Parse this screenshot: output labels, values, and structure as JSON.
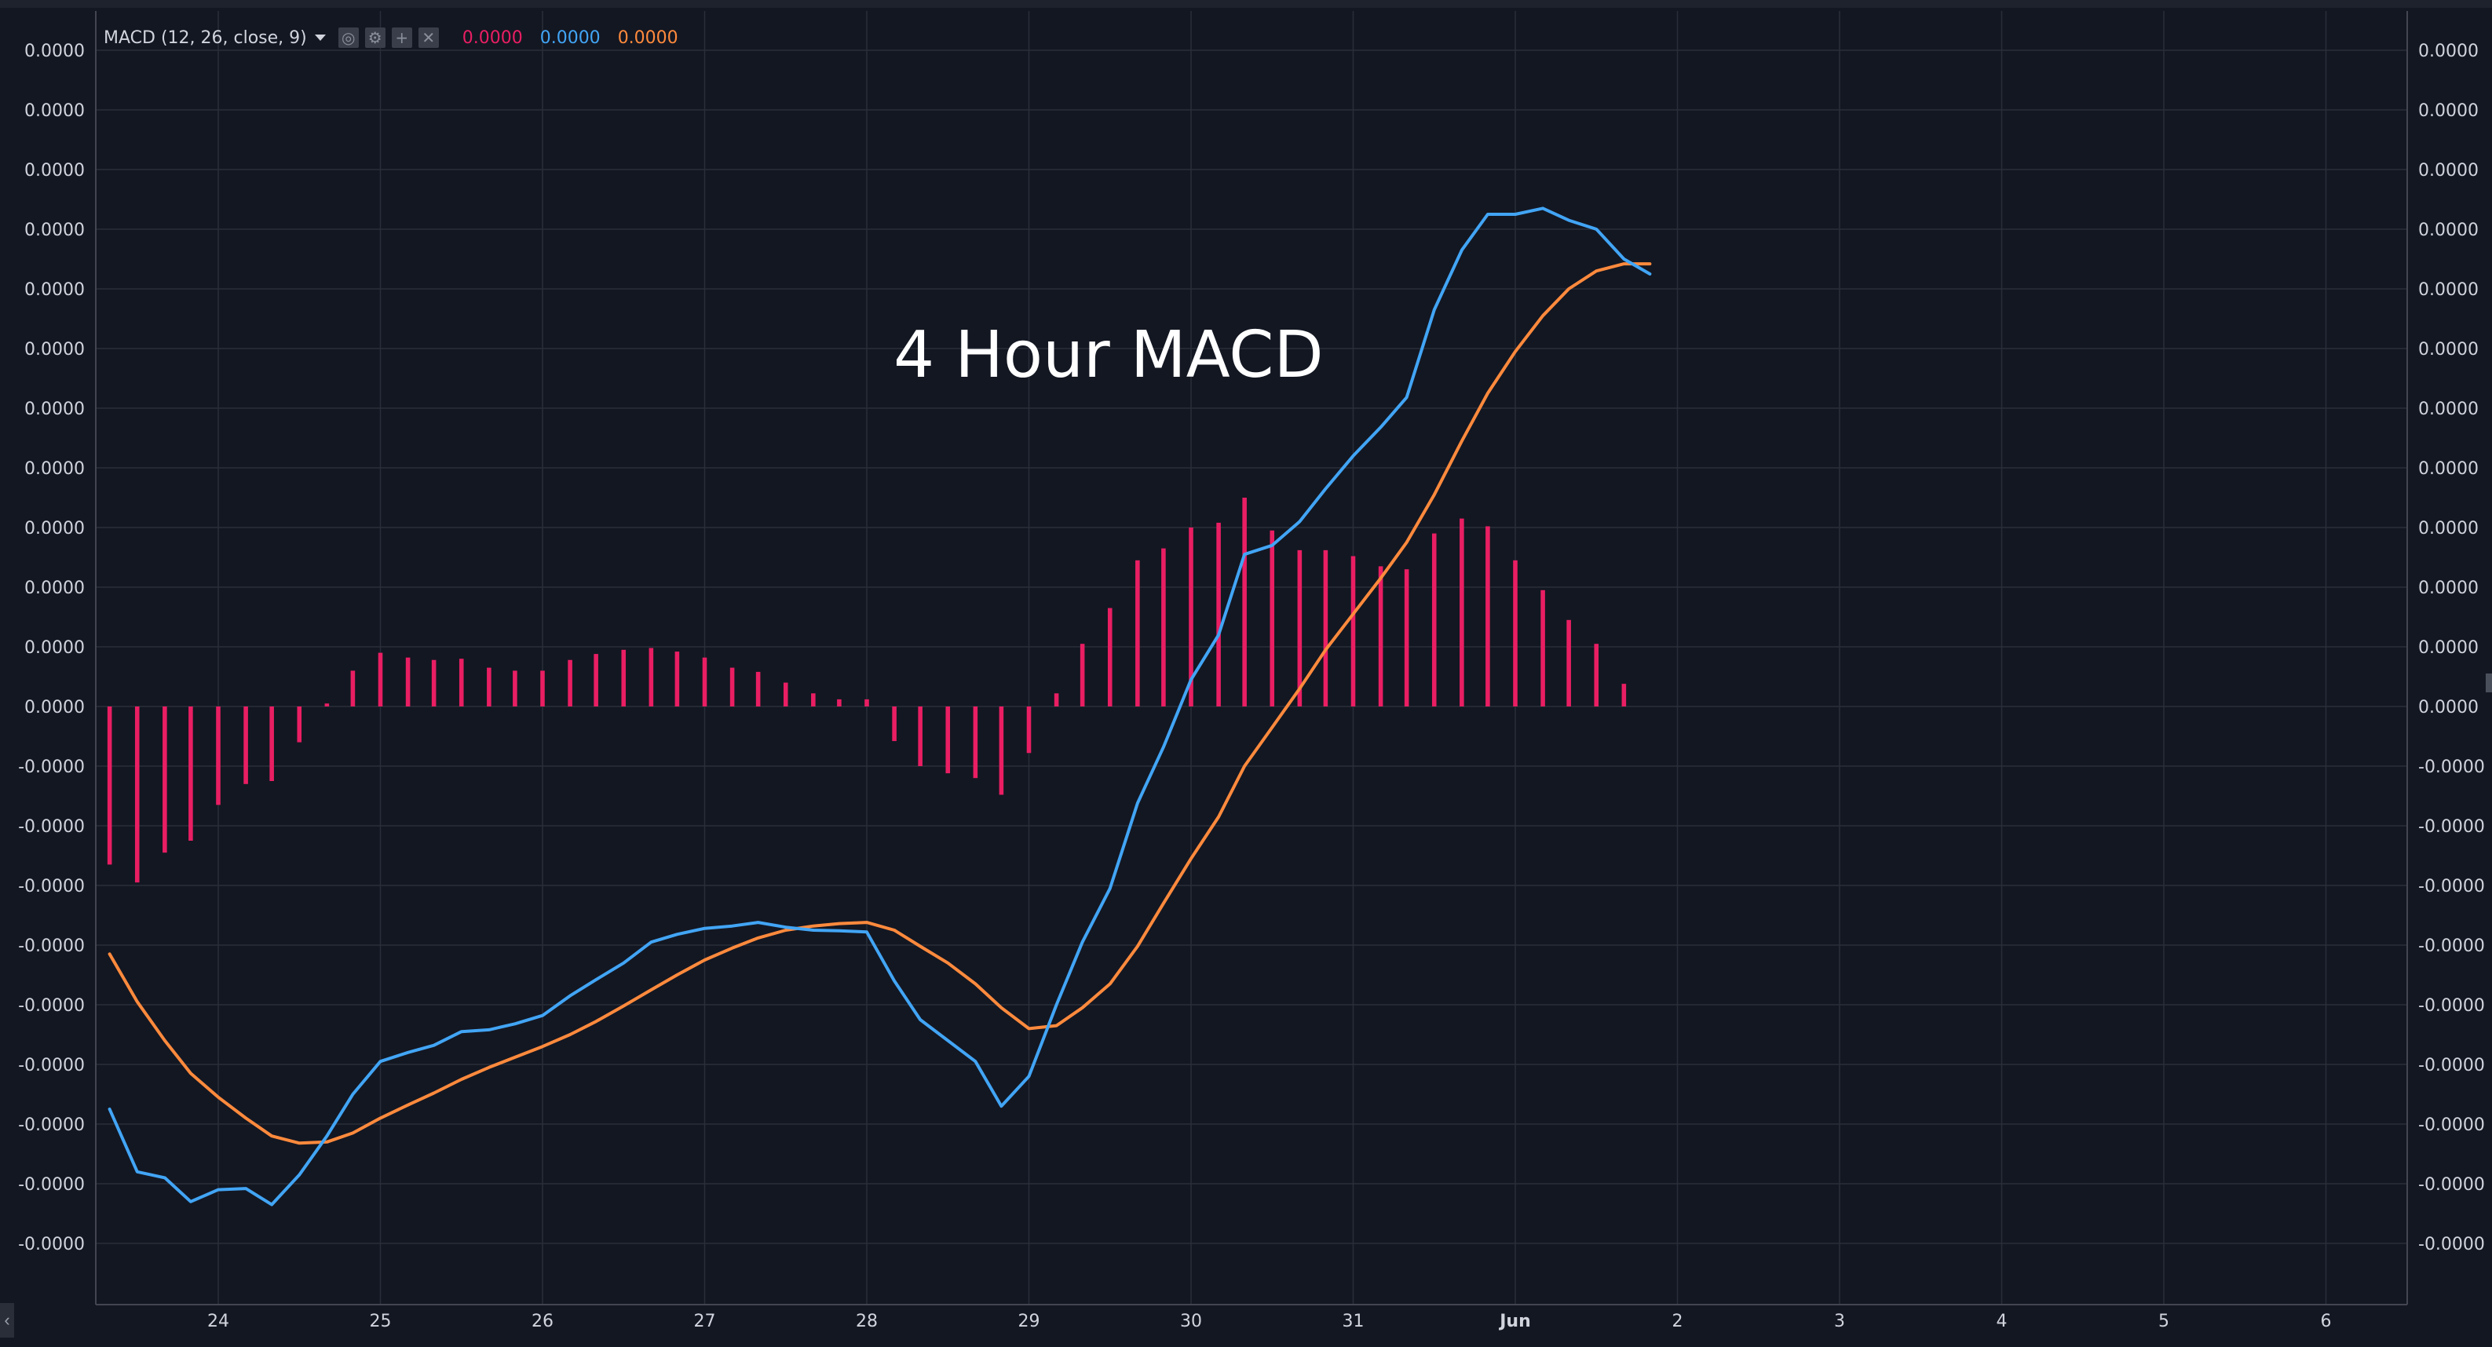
{
  "legend": {
    "indicator": "MACD (12, 26, close, 9)",
    "value_histogram": "0.0000",
    "value_macd": "0.0000",
    "value_signal": "0.0000",
    "controls": [
      {
        "name": "eye-icon",
        "glyph": "◎"
      },
      {
        "name": "settings-icon",
        "glyph": "⚙"
      },
      {
        "name": "add-icon",
        "glyph": "+"
      },
      {
        "name": "close-icon",
        "glyph": "✕"
      }
    ]
  },
  "annotation": "4 Hour MACD",
  "colors": {
    "background": "#131722",
    "grid": "#2a2e39",
    "axis_line": "#434651",
    "histogram": "#e91e63",
    "macd": "#42a5f5",
    "signal": "#ff8a3d",
    "text": "#d1d4dc"
  },
  "chart_data": {
    "type": "line",
    "y_tick_labels": [
      "0.0000",
      "0.0000",
      "0.0000",
      "0.0000",
      "0.0000",
      "0.0000",
      "0.0000",
      "0.0000",
      "0.0000",
      "0.0000",
      "0.0000",
      "0.0000",
      "-0.0000",
      "-0.0000",
      "-0.0000",
      "-0.0000",
      "-0.0000",
      "-0.0000",
      "-0.0000",
      "-0.0000",
      "-0.0000"
    ],
    "y_axis_both_sides": true,
    "x_tick_labels": [
      "24",
      "25",
      "26",
      "27",
      "28",
      "29",
      "30",
      "31",
      "Jun",
      "2",
      "3",
      "4",
      "5",
      "6"
    ],
    "x_label_bold": "Jun",
    "grid": true,
    "bar_width_days": 0.02,
    "series": [
      {
        "name": "Histogram",
        "kind": "histogram",
        "color": "#e91e63",
        "x": [
          23.33,
          23.5,
          23.67,
          23.83,
          24.0,
          24.17,
          24.33,
          24.5,
          24.67,
          24.83,
          25.0,
          25.17,
          25.33,
          25.5,
          25.67,
          25.83,
          26.0,
          26.17,
          26.33,
          26.5,
          26.67,
          26.83,
          27.0,
          27.17,
          27.33,
          27.5,
          27.67,
          27.83,
          28.0,
          28.17,
          28.33,
          28.5,
          28.67,
          28.83,
          29.0,
          29.17,
          29.33,
          29.5,
          29.67,
          29.83,
          30.0,
          30.17,
          30.33,
          30.5,
          30.67,
          30.83,
          31.0,
          31.17,
          31.33,
          31.5,
          31.67,
          31.83,
          32.0,
          32.17,
          32.33,
          32.5,
          32.67
        ],
        "values": [
          -2.65,
          -2.95,
          -2.45,
          -2.25,
          -1.65,
          -1.3,
          -1.25,
          -0.6,
          0.05,
          0.6,
          0.9,
          0.82,
          0.78,
          0.8,
          0.65,
          0.6,
          0.6,
          0.78,
          0.88,
          0.95,
          0.98,
          0.92,
          0.82,
          0.65,
          0.58,
          0.4,
          0.22,
          0.12,
          0.12,
          -0.58,
          -1.0,
          -1.12,
          -1.2,
          -1.48,
          -0.78,
          0.22,
          1.05,
          1.65,
          2.45,
          2.65,
          3.0,
          3.08,
          3.5,
          2.95,
          2.62,
          2.62,
          2.52,
          2.35,
          2.3,
          2.9,
          3.15,
          3.02,
          2.45,
          1.95,
          1.45,
          1.05,
          0.38
        ]
      },
      {
        "name": "MACD",
        "kind": "line",
        "color": "#42a5f5",
        "x": [
          23.33,
          23.5,
          23.67,
          23.83,
          24.0,
          24.17,
          24.33,
          24.5,
          24.67,
          24.83,
          25.0,
          25.17,
          25.33,
          25.5,
          25.67,
          25.83,
          26.0,
          26.17,
          26.33,
          26.5,
          26.67,
          26.83,
          27.0,
          27.17,
          27.33,
          27.5,
          27.67,
          27.83,
          28.0,
          28.17,
          28.33,
          28.5,
          28.67,
          28.83,
          29.0,
          29.17,
          29.33,
          29.5,
          29.67,
          29.83,
          30.0,
          30.17,
          30.33,
          30.5,
          30.67,
          30.83,
          31.0,
          31.17,
          31.33,
          31.5,
          31.67,
          31.83,
          32.0,
          32.17,
          32.33,
          32.5,
          32.67,
          32.83
        ],
        "values": [
          -6.75,
          -7.8,
          -7.9,
          -8.3,
          -8.1,
          -8.08,
          -8.35,
          -7.85,
          -7.2,
          -6.5,
          -5.95,
          -5.8,
          -5.68,
          -5.45,
          -5.42,
          -5.32,
          -5.18,
          -4.85,
          -4.58,
          -4.3,
          -3.95,
          -3.82,
          -3.72,
          -3.68,
          -3.62,
          -3.7,
          -3.75,
          -3.76,
          -3.78,
          -4.6,
          -5.25,
          -5.6,
          -5.95,
          -6.7,
          -6.2,
          -5.0,
          -3.95,
          -3.05,
          -1.62,
          -0.68,
          0.45,
          1.2,
          2.55,
          2.7,
          3.1,
          3.65,
          4.2,
          4.68,
          5.18,
          6.65,
          7.65,
          8.25,
          8.25,
          8.35,
          8.15,
          8.0,
          7.5,
          7.25
        ]
      },
      {
        "name": "Signal",
        "kind": "line",
        "color": "#ff8a3d",
        "x": [
          23.33,
          23.5,
          23.67,
          23.83,
          24.0,
          24.17,
          24.33,
          24.5,
          24.67,
          24.83,
          25.0,
          25.17,
          25.33,
          25.5,
          25.67,
          25.83,
          26.0,
          26.17,
          26.33,
          26.5,
          26.67,
          26.83,
          27.0,
          27.17,
          27.33,
          27.5,
          27.67,
          27.83,
          28.0,
          28.17,
          28.33,
          28.5,
          28.67,
          28.83,
          29.0,
          29.17,
          29.33,
          29.5,
          29.67,
          29.83,
          30.0,
          30.17,
          30.33,
          30.5,
          30.67,
          30.83,
          31.0,
          31.17,
          31.33,
          31.5,
          31.67,
          31.83,
          32.0,
          32.17,
          32.33,
          32.5,
          32.67,
          32.83
        ],
        "values": [
          -4.15,
          -4.95,
          -5.6,
          -6.15,
          -6.55,
          -6.9,
          -7.2,
          -7.32,
          -7.3,
          -7.15,
          -6.9,
          -6.68,
          -6.48,
          -6.25,
          -6.05,
          -5.88,
          -5.7,
          -5.5,
          -5.28,
          -5.02,
          -4.75,
          -4.5,
          -4.25,
          -4.05,
          -3.88,
          -3.75,
          -3.68,
          -3.64,
          -3.62,
          -3.75,
          -4.02,
          -4.3,
          -4.65,
          -5.05,
          -5.4,
          -5.35,
          -5.05,
          -4.65,
          -4.02,
          -3.3,
          -2.55,
          -1.85,
          -1.0,
          -0.35,
          0.3,
          0.95,
          1.55,
          2.15,
          2.75,
          3.55,
          4.45,
          5.25,
          5.95,
          6.55,
          7.0,
          7.3,
          7.42,
          7.42
        ]
      }
    ]
  }
}
